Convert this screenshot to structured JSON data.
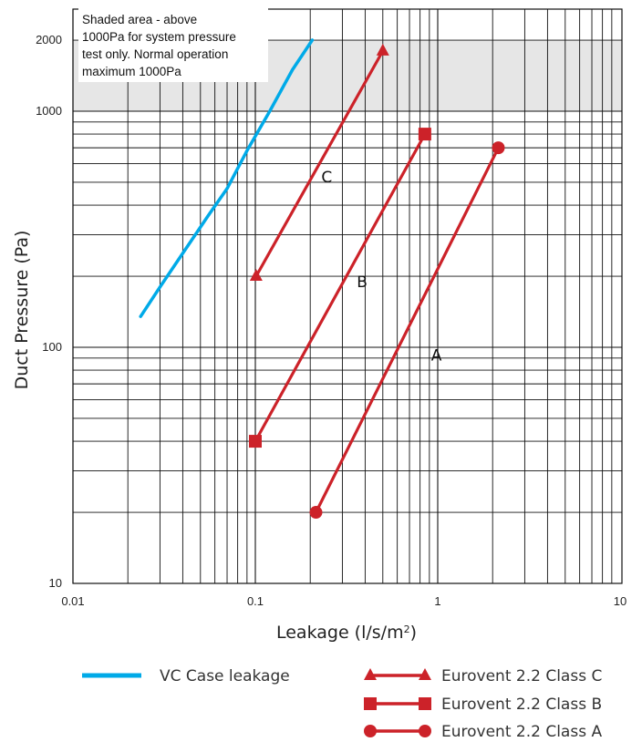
{
  "chart_data": {
    "type": "line",
    "xscale": "log",
    "yscale": "log",
    "xlim": [
      0.01,
      10
    ],
    "ylim": [
      10,
      2000
    ],
    "xlabel": "Leakage (l/s/m",
    "xlabel_sup": "2",
    "xlabel_close": ")",
    "ylabel": "Duct Pressure (Pa)",
    "xticks": [
      {
        "value": 0.01,
        "label": "0.01"
      },
      {
        "value": 0.1,
        "label": "0.1"
      },
      {
        "value": 1,
        "label": "1"
      },
      {
        "value": 10,
        "label": "10"
      }
    ],
    "yticks": [
      {
        "value": 10,
        "label": "10"
      },
      {
        "value": 100,
        "label": "100"
      },
      {
        "value": 1000,
        "label": "1000"
      },
      {
        "value": 2000,
        "label": "2000"
      }
    ],
    "grid": true,
    "shaded_region": {
      "y_from": 1000,
      "y_to": 2000,
      "color": "#e6e6e6"
    },
    "note": [
      "Shaded area - above",
      "1000Pa for system pressure",
      "test only. Normal operation",
      "maximum 1000Pa"
    ],
    "series": [
      {
        "name": "VC Case leakage",
        "color": "#00aae8",
        "marker": "none",
        "points": [
          [
            0.0235,
            135
          ],
          [
            0.03,
            180
          ],
          [
            0.04,
            250
          ],
          [
            0.055,
            360
          ],
          [
            0.07,
            470
          ],
          [
            0.09,
            680
          ],
          [
            0.12,
            1000
          ],
          [
            0.16,
            1500
          ],
          [
            0.205,
            2000
          ]
        ]
      },
      {
        "name": "Eurovent 2.2 Class C",
        "label": "C",
        "label_at": [
          0.23,
          500
        ],
        "color": "#cc2229",
        "marker": "triangle",
        "points": [
          [
            0.101,
            200
          ],
          [
            0.5,
            1800
          ]
        ]
      },
      {
        "name": "Eurovent 2.2 Class B",
        "label": "B",
        "label_at": [
          0.36,
          180
        ],
        "color": "#cc2229",
        "marker": "square",
        "points": [
          [
            0.1,
            40
          ],
          [
            0.85,
            800
          ]
        ]
      },
      {
        "name": "Eurovent 2.2 Class A",
        "label": "A",
        "label_at": [
          0.92,
          88
        ],
        "color": "#cc2229",
        "marker": "circle",
        "points": [
          [
            0.215,
            20
          ],
          [
            2.15,
            700
          ]
        ]
      }
    ],
    "legend": [
      {
        "label": "VC Case leakage",
        "series": 0
      },
      {
        "label": "Eurovent 2.2 Class C",
        "series": 1
      },
      {
        "label": "Eurovent 2.2 Class B",
        "series": 2
      },
      {
        "label": "Eurovent 2.2 Class A",
        "series": 3
      }
    ]
  }
}
